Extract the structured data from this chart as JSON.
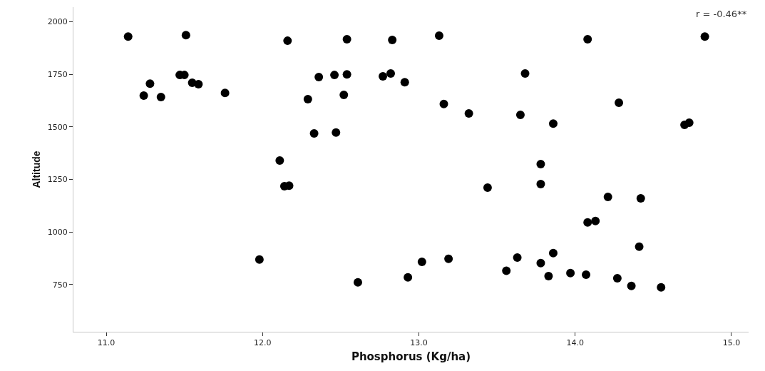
{
  "chart_data": {
    "type": "scatter",
    "xlabel": "Phosphorus (Kg/ha)",
    "ylabel": "Altitude",
    "annotations": [
      "r = -0.46**"
    ],
    "xlim": [
      10.79,
      15.11
    ],
    "xticks": [
      {
        "value": 11,
        "label": "11.0"
      },
      {
        "value": 12,
        "label": "12.0"
      },
      {
        "value": 13,
        "label": "13.0"
      },
      {
        "value": 14,
        "label": "14.0"
      },
      {
        "value": 15,
        "label": "15.0"
      }
    ],
    "ylim": [
      525,
      2070
    ],
    "yticks": [
      750,
      1000,
      1250,
      1500,
      1750,
      2000
    ],
    "marker": "circle",
    "series": [
      {
        "color": "#000000",
        "x": [
          11.14,
          11.51,
          12.16,
          12.54,
          12.83,
          13.13,
          14.08,
          14.83,
          11.47,
          11.5,
          11.28,
          11.55,
          11.59,
          11.24,
          11.35,
          11.76,
          12.11,
          12.14,
          12.17,
          11.98,
          12.36,
          12.46,
          12.54,
          12.77,
          12.82,
          12.91,
          12.29,
          12.52,
          13.16,
          13.32,
          12.33,
          12.47,
          13.44,
          12.61,
          12.93,
          13.02,
          13.19,
          13.56,
          13.68,
          14.28,
          13.65,
          13.86,
          14.7,
          14.73,
          13.78,
          13.78,
          14.21,
          14.42,
          14.08,
          14.13,
          14.41,
          13.63,
          13.86,
          13.78,
          13.83,
          13.97,
          14.07,
          14.27,
          14.36,
          14.55
        ],
        "values": [
          1930,
          1937,
          1910,
          1917,
          1914,
          1934,
          1917,
          1930,
          1747,
          1747,
          1706,
          1710,
          1703,
          1649,
          1642,
          1662,
          1340,
          1218,
          1220,
          869,
          1737,
          1747,
          1750,
          1741,
          1754,
          1713,
          1632,
          1652,
          1609,
          1564,
          1469,
          1473,
          1211,
          760,
          784,
          858,
          872,
          815,
          1754,
          1615,
          1557,
          1516,
          1510,
          1520,
          1323,
          1228,
          1167,
          1160,
          1045,
          1052,
          930,
          878,
          899,
          852,
          790,
          804,
          797,
          780,
          743,
          736
        ]
      }
    ]
  }
}
